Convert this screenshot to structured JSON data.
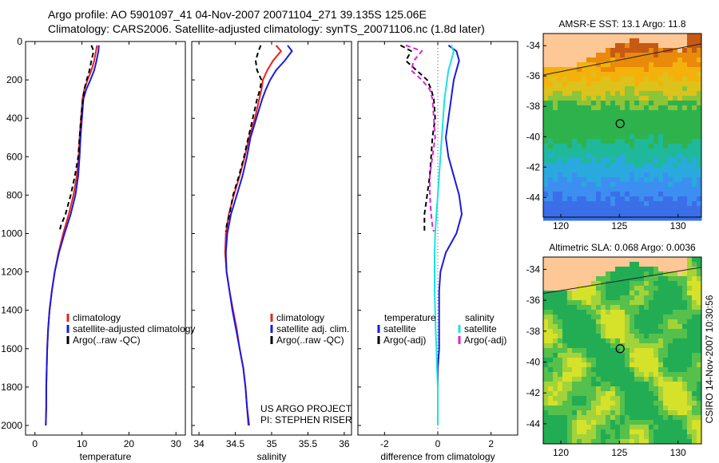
{
  "header": {
    "line1": "Argo profile: AO 5901097_41 04-Nov-2007 20071104_271 39.135S 125.06E",
    "line2": "Climatology: CARS2006. Satellite-adjusted climatology: synTS_20071106.nc (1.8d later)"
  },
  "side_credit": "CSIRO 14-Nov-2007 10:30:56",
  "colors": {
    "climatology": "#e8231b",
    "satellite": "#1a1adf",
    "argo": "#000000",
    "salinity_satellite": "#19e3e3",
    "salinity_argo": "#e020d8"
  },
  "chart_data": [
    {
      "type": "line",
      "xlabel": "temperature",
      "ylabel": "",
      "xlim": [
        -2,
        32
      ],
      "ylim": [
        2050,
        0
      ],
      "xticks": [
        "0",
        "10",
        "20",
        "30"
      ],
      "xtick_values": [
        0,
        10,
        20,
        30
      ],
      "yticks": [
        "0",
        "200",
        "400",
        "600",
        "800",
        "1000",
        "1200",
        "1400",
        "1600",
        "1800",
        "2000"
      ],
      "ytick_values": [
        0,
        200,
        400,
        600,
        800,
        1000,
        1200,
        1400,
        1600,
        1800,
        2000
      ],
      "legend": {
        "placement": "center-right",
        "entries": [
          {
            "label": "climatology",
            "color": "#e8231b"
          },
          {
            "label": "satellite-adjusted climatology",
            "color": "#1a1adf"
          },
          {
            "label": "Argo(..raw -QC)",
            "color": "#000000"
          }
        ]
      },
      "series": [
        {
          "color": "#e8231b",
          "dash": "",
          "x": [
            13.2,
            13.0,
            12.6,
            12.0,
            11.2,
            10.5,
            10.1,
            9.8,
            9.5,
            9.3,
            8.9,
            8.2,
            7.2,
            6.0,
            5.0,
            4.2,
            3.6,
            3.1,
            2.8,
            2.6,
            2.5,
            2.4,
            2.4,
            2.3
          ],
          "y": [
            20,
            50,
            100,
            150,
            200,
            250,
            300,
            400,
            500,
            600,
            700,
            800,
            900,
            1000,
            1100,
            1200,
            1300,
            1400,
            1500,
            1600,
            1700,
            1800,
            1900,
            2000
          ]
        },
        {
          "color": "#1a1adf",
          "dash": "",
          "x": [
            13.6,
            13.5,
            13.1,
            12.6,
            11.8,
            10.9,
            10.3,
            10.0,
            9.7,
            9.5,
            9.2,
            8.6,
            7.6,
            6.3,
            5.1,
            4.2,
            3.6,
            3.1,
            2.8,
            2.6,
            2.5,
            2.4,
            2.4,
            2.3
          ],
          "y": [
            20,
            50,
            100,
            150,
            200,
            250,
            300,
            400,
            500,
            600,
            700,
            800,
            900,
            1000,
            1100,
            1200,
            1300,
            1400,
            1500,
            1600,
            1700,
            1800,
            1900,
            2000
          ]
        },
        {
          "color": "#000000",
          "dash": "6,4",
          "x": [
            12.0,
            12.5,
            12.0,
            11.6,
            11.0,
            10.5,
            10.2,
            9.8,
            9.5,
            9.2,
            8.5,
            7.6,
            6.5,
            5.5,
            5.2
          ],
          "y": [
            20,
            50,
            100,
            150,
            200,
            250,
            300,
            400,
            500,
            600,
            700,
            800,
            900,
            960,
            990
          ]
        }
      ],
      "annotations": []
    },
    {
      "type": "line",
      "xlabel": "salinity",
      "ylabel": "",
      "xlim": [
        33.9,
        36.1
      ],
      "ylim": [
        2050,
        0
      ],
      "xticks": [
        "34",
        "34.5",
        "35",
        "35.5",
        "36"
      ],
      "xtick_values": [
        34,
        34.5,
        35,
        35.5,
        36
      ],
      "yticks": [],
      "legend": {
        "placement": "center-right",
        "entries": [
          {
            "label": "climatology",
            "color": "#e8231b"
          },
          {
            "label": "satellite adj. clim.",
            "color": "#1a1adf"
          },
          {
            "label": "Argo(..raw -QC)",
            "color": "#000000"
          }
        ]
      },
      "series": [
        {
          "color": "#e8231b",
          "dash": "",
          "x": [
            35.06,
            35.13,
            35.02,
            34.94,
            34.88,
            34.86,
            34.83,
            34.77,
            34.69,
            34.63,
            34.56,
            34.48,
            34.41,
            34.37,
            34.36,
            34.38,
            34.42,
            34.47,
            34.52,
            34.56,
            34.61,
            34.64,
            34.66,
            34.68
          ],
          "y": [
            20,
            50,
            100,
            150,
            200,
            250,
            300,
            400,
            500,
            600,
            700,
            800,
            900,
            1000,
            1100,
            1200,
            1300,
            1400,
            1500,
            1600,
            1700,
            1800,
            1900,
            2000
          ]
        },
        {
          "color": "#1a1adf",
          "dash": "",
          "x": [
            35.22,
            35.28,
            35.18,
            35.06,
            34.98,
            34.92,
            34.87,
            34.79,
            34.71,
            34.66,
            34.6,
            34.52,
            34.44,
            34.39,
            34.37,
            34.38,
            34.42,
            34.46,
            34.51,
            34.56,
            34.61,
            34.64,
            34.66,
            34.69
          ],
          "y": [
            20,
            50,
            100,
            150,
            200,
            250,
            300,
            400,
            500,
            600,
            700,
            800,
            900,
            1000,
            1100,
            1200,
            1300,
            1400,
            1500,
            1600,
            1700,
            1800,
            1900,
            2000
          ]
        },
        {
          "color": "#000000",
          "dash": "6,4",
          "x": [
            34.85,
            34.82,
            34.78,
            34.8,
            34.86,
            34.84,
            34.8,
            34.74,
            34.68,
            34.62,
            34.55,
            34.47,
            34.42,
            34.38,
            34.37
          ],
          "y": [
            20,
            50,
            100,
            150,
            200,
            250,
            300,
            400,
            500,
            600,
            700,
            800,
            900,
            960,
            990
          ]
        }
      ],
      "annotations": [
        "US ARGO PROJECT",
        "PI: STEPHEN RISER"
      ]
    },
    {
      "type": "line",
      "xlabel": "difference from climatology",
      "ylabel": "",
      "xlim": [
        -3,
        3
      ],
      "ylim": [
        2050,
        0
      ],
      "xticks": [
        "-2",
        "0",
        "2"
      ],
      "xtick_values": [
        -2,
        0,
        2
      ],
      "yticks": [],
      "legend": {
        "placement": "center",
        "entries": [
          {
            "label": "temperature",
            "color": ""
          },
          {
            "label": "satellite",
            "color": "#1a1adf"
          },
          {
            "label": "Argo(-adj)",
            "color": "#000000"
          },
          {
            "label": "salinity",
            "color": ""
          },
          {
            "label": "satellite",
            "color": "#19e3e3"
          },
          {
            "label": "Argo(-adj)",
            "color": "#e020d8"
          }
        ]
      },
      "series": [
        {
          "color": "#1a1adf",
          "dash": "",
          "x": [
            0.4,
            0.7,
            0.8,
            0.7,
            0.6,
            0.55,
            0.5,
            0.4,
            0.3,
            0.4,
            0.6,
            0.8,
            0.9,
            0.7,
            0.3,
            0.1,
            0.05,
            0.05,
            0.05,
            0.05,
            0.0,
            0.0,
            0.0,
            0.0
          ],
          "y": [
            20,
            50,
            100,
            150,
            200,
            250,
            300,
            400,
            500,
            600,
            700,
            800,
            900,
            1000,
            1100,
            1200,
            1300,
            1400,
            1500,
            1600,
            1700,
            1800,
            1900,
            2000
          ]
        },
        {
          "color": "#19e3e3",
          "dash": "",
          "x": [
            0.5,
            0.6,
            0.5,
            0.4,
            0.35,
            0.3,
            0.25,
            0.2,
            0.15,
            0.1,
            0.05,
            0.0,
            -0.05,
            -0.1,
            -0.12,
            -0.12,
            -0.12,
            -0.1,
            -0.08,
            -0.05,
            -0.03,
            0.0,
            0.0,
            0.0
          ],
          "y": [
            20,
            50,
            100,
            150,
            200,
            250,
            300,
            400,
            500,
            600,
            700,
            800,
            900,
            1000,
            1100,
            1200,
            1300,
            1400,
            1500,
            1600,
            1700,
            1800,
            1900,
            2000
          ]
        },
        {
          "color": "#000000",
          "dash": "6,4",
          "x": [
            -1.4,
            -1.0,
            -1.2,
            -0.8,
            -0.4,
            -0.25,
            -0.15,
            -0.1,
            -0.2,
            -0.25,
            -0.3,
            -0.4,
            -0.5,
            -0.5,
            -0.5
          ],
          "y": [
            20,
            50,
            100,
            150,
            200,
            250,
            300,
            400,
            500,
            600,
            700,
            800,
            900,
            960,
            990
          ]
        },
        {
          "color": "#e020d8",
          "dash": "6,4",
          "x": [
            -1.2,
            -0.6,
            -0.9,
            -1.0,
            -0.6,
            -0.3,
            -0.2,
            -0.15,
            -0.1,
            -0.2,
            -0.3,
            -0.3,
            -0.25,
            -0.2,
            -0.15
          ],
          "y": [
            20,
            50,
            100,
            150,
            200,
            250,
            300,
            400,
            500,
            600,
            700,
            800,
            900,
            960,
            990
          ]
        }
      ],
      "annotations": []
    },
    {
      "type": "heatmap",
      "title": "AMSR-E SST: 13.1 Argo: 11.8",
      "xlim": [
        118.5,
        132
      ],
      "ylim": [
        -45.3,
        -33.2
      ],
      "xticks": [
        "120",
        "125",
        "130"
      ],
      "xtick_values": [
        120,
        125,
        130
      ],
      "yticks": [
        "-34",
        "-36",
        "-38",
        "-40",
        "-42",
        "-44"
      ],
      "ytick_values": [
        -34,
        -36,
        -38,
        -40,
        -42,
        -44
      ],
      "marker": {
        "lon": 125.06,
        "lat": -39.135
      }
    },
    {
      "type": "heatmap",
      "title": "Altimetric SLA: 0.068 Argo: 0.0036",
      "xlim": [
        118.5,
        132
      ],
      "ylim": [
        -45.3,
        -33.2
      ],
      "xticks": [
        "120",
        "125",
        "130"
      ],
      "xtick_values": [
        120,
        125,
        130
      ],
      "yticks": [
        "-34",
        "-36",
        "-38",
        "-40",
        "-42",
        "-44"
      ],
      "ytick_values": [
        -34,
        -36,
        -38,
        -40,
        -42,
        -44
      ],
      "marker": {
        "lon": 125.06,
        "lat": -39.135
      }
    }
  ]
}
